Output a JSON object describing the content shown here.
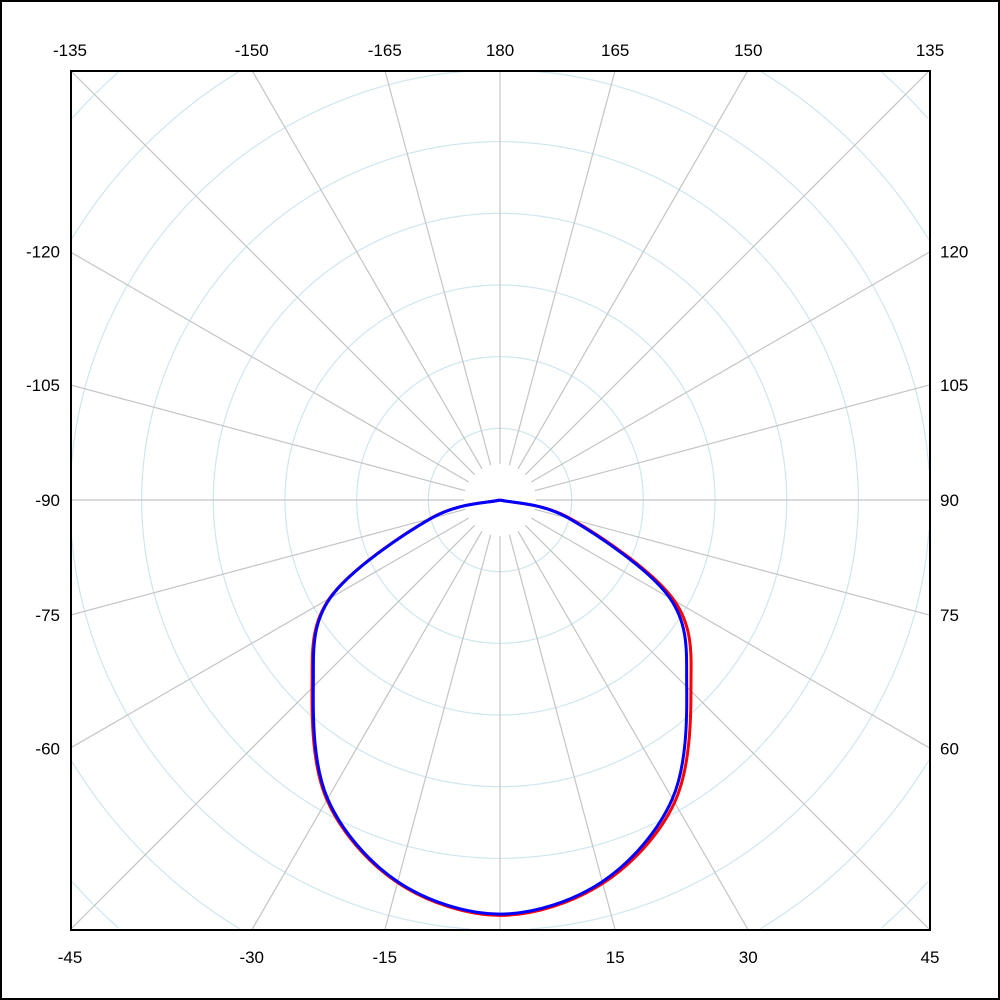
{
  "chart_data": {
    "type": "polar-line",
    "angle_unit": "degrees",
    "angle_zero": "bottom",
    "angle_direction": "counterclockwise (positive toward right)",
    "angle_ticks": [
      -135,
      -150,
      -165,
      180,
      165,
      150,
      135,
      120,
      105,
      90,
      75,
      60,
      45,
      30,
      15,
      -15,
      -30,
      -45,
      -60,
      -75,
      -90,
      -105,
      -120
    ],
    "angle_tick_labels": [
      "-135",
      "-150",
      "-165",
      "180",
      "165",
      "150",
      "135",
      "120",
      "105",
      "90",
      "75",
      "60",
      "45",
      "30",
      "15",
      "-15",
      "-30",
      "-45",
      "-60",
      "-75",
      "-90",
      "-105",
      "-120"
    ],
    "radial_grid_rings": 6,
    "radial_range": [
      0,
      1
    ],
    "radial_labels": false,
    "grid": true,
    "colors": {
      "ring": "#cfe6ee",
      "spoke": "#c4c4c4",
      "frame": "#000000"
    },
    "series": [
      {
        "color": "#ff0000",
        "theta": [
          -90,
          -75,
          -60,
          -45,
          -30,
          -15,
          0,
          15,
          30,
          45,
          60,
          75,
          90
        ],
        "r": [
          0,
          0.168,
          0.458,
          0.618,
          0.805,
          0.921,
          0.966,
          0.923,
          0.812,
          0.628,
          0.468,
          0.172,
          0
        ]
      },
      {
        "color": "#0000ff",
        "theta": [
          -90,
          -75,
          -60,
          -45,
          -30,
          -15,
          0,
          15,
          30,
          45,
          60,
          75,
          90
        ],
        "r": [
          0,
          0.167,
          0.456,
          0.614,
          0.802,
          0.919,
          0.963,
          0.919,
          0.802,
          0.614,
          0.456,
          0.167,
          0
        ]
      }
    ]
  }
}
